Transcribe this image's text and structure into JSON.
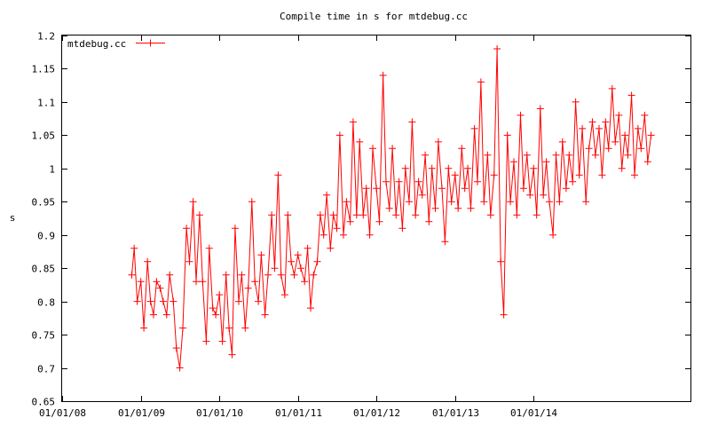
{
  "chart_data": {
    "type": "line",
    "title": "Compile time in s for mtdebug.cc",
    "xlabel": "",
    "ylabel": "s",
    "xlim": [
      "2008-01-01",
      "2015-12-31"
    ],
    "ylim": [
      0.65,
      1.2
    ],
    "yticks": [
      0.65,
      0.7,
      0.75,
      0.8,
      0.85,
      0.9,
      0.95,
      1,
      1.05,
      1.1,
      1.15,
      1.2
    ],
    "ytick_labels": [
      "0.65",
      "0.7",
      "0.75",
      "0.8",
      "0.85",
      "0.9",
      "0.95",
      "1",
      "1.05",
      "1.1",
      "1.15",
      "1.2"
    ],
    "xticks": [
      "2008-01-01",
      "2009-01-01",
      "2010-01-01",
      "2011-01-01",
      "2012-01-01",
      "2013-01-01",
      "2014-01-01"
    ],
    "xtick_labels": [
      "01/01/08",
      "01/01/09",
      "01/01/10",
      "01/01/11",
      "01/01/12",
      "01/01/13",
      "01/01/14"
    ],
    "grid": false,
    "legend_position": "top-left",
    "series": [
      {
        "name": "mtdebug.cc",
        "color": "#ff0000",
        "marker": "plus",
        "points": [
          [
            "2008-11-20",
            0.84
          ],
          [
            "2008-12-01",
            0.88
          ],
          [
            "2008-12-15",
            0.8
          ],
          [
            "2009-01-01",
            0.83
          ],
          [
            "2009-01-15",
            0.76
          ],
          [
            "2009-02-01",
            0.86
          ],
          [
            "2009-02-15",
            0.8
          ],
          [
            "2009-03-01",
            0.78
          ],
          [
            "2009-03-15",
            0.83
          ],
          [
            "2009-04-01",
            0.82
          ],
          [
            "2009-04-15",
            0.8
          ],
          [
            "2009-05-01",
            0.78
          ],
          [
            "2009-05-15",
            0.84
          ],
          [
            "2009-06-01",
            0.8
          ],
          [
            "2009-06-15",
            0.73
          ],
          [
            "2009-07-01",
            0.7
          ],
          [
            "2009-07-15",
            0.76
          ],
          [
            "2009-08-01",
            0.91
          ],
          [
            "2009-08-15",
            0.86
          ],
          [
            "2009-09-01",
            0.95
          ],
          [
            "2009-09-15",
            0.83
          ],
          [
            "2009-10-01",
            0.93
          ],
          [
            "2009-10-15",
            0.83
          ],
          [
            "2009-11-01",
            0.74
          ],
          [
            "2009-11-15",
            0.88
          ],
          [
            "2009-12-01",
            0.79
          ],
          [
            "2009-12-15",
            0.78
          ],
          [
            "2010-01-01",
            0.81
          ],
          [
            "2010-01-15",
            0.74
          ],
          [
            "2010-02-01",
            0.84
          ],
          [
            "2010-02-15",
            0.76
          ],
          [
            "2010-03-01",
            0.72
          ],
          [
            "2010-03-15",
            0.91
          ],
          [
            "2010-04-01",
            0.8
          ],
          [
            "2010-04-15",
            0.84
          ],
          [
            "2010-05-01",
            0.76
          ],
          [
            "2010-05-15",
            0.82
          ],
          [
            "2010-06-01",
            0.95
          ],
          [
            "2010-06-15",
            0.83
          ],
          [
            "2010-07-01",
            0.8
          ],
          [
            "2010-07-15",
            0.87
          ],
          [
            "2010-08-01",
            0.78
          ],
          [
            "2010-08-15",
            0.84
          ],
          [
            "2010-09-01",
            0.93
          ],
          [
            "2010-09-15",
            0.85
          ],
          [
            "2010-10-01",
            0.99
          ],
          [
            "2010-10-15",
            0.84
          ],
          [
            "2010-11-01",
            0.81
          ],
          [
            "2010-11-15",
            0.93
          ],
          [
            "2010-12-01",
            0.86
          ],
          [
            "2010-12-15",
            0.84
          ],
          [
            "2011-01-01",
            0.87
          ],
          [
            "2011-01-15",
            0.85
          ],
          [
            "2011-02-01",
            0.83
          ],
          [
            "2011-02-15",
            0.88
          ],
          [
            "2011-03-01",
            0.79
          ],
          [
            "2011-03-15",
            0.84
          ],
          [
            "2011-04-01",
            0.86
          ],
          [
            "2011-04-15",
            0.93
          ],
          [
            "2011-05-01",
            0.9
          ],
          [
            "2011-05-15",
            0.96
          ],
          [
            "2011-06-01",
            0.88
          ],
          [
            "2011-06-15",
            0.93
          ],
          [
            "2011-07-01",
            0.91
          ],
          [
            "2011-07-15",
            1.05
          ],
          [
            "2011-08-01",
            0.9
          ],
          [
            "2011-08-15",
            0.95
          ],
          [
            "2011-09-01",
            0.92
          ],
          [
            "2011-09-15",
            1.07
          ],
          [
            "2011-10-01",
            0.93
          ],
          [
            "2011-10-15",
            1.04
          ],
          [
            "2011-11-01",
            0.93
          ],
          [
            "2011-11-15",
            0.97
          ],
          [
            "2011-12-01",
            0.9
          ],
          [
            "2011-12-15",
            1.03
          ],
          [
            "2012-01-01",
            0.97
          ],
          [
            "2012-01-15",
            0.92
          ],
          [
            "2012-02-01",
            1.14
          ],
          [
            "2012-02-15",
            0.98
          ],
          [
            "2012-03-01",
            0.94
          ],
          [
            "2012-03-15",
            1.03
          ],
          [
            "2012-04-01",
            0.93
          ],
          [
            "2012-04-15",
            0.98
          ],
          [
            "2012-05-01",
            0.91
          ],
          [
            "2012-05-15",
            1.0
          ],
          [
            "2012-06-01",
            0.95
          ],
          [
            "2012-06-15",
            1.07
          ],
          [
            "2012-07-01",
            0.93
          ],
          [
            "2012-07-15",
            0.98
          ],
          [
            "2012-08-01",
            0.96
          ],
          [
            "2012-08-15",
            1.02
          ],
          [
            "2012-09-01",
            0.92
          ],
          [
            "2012-09-15",
            1.0
          ],
          [
            "2012-10-01",
            0.94
          ],
          [
            "2012-10-15",
            1.04
          ],
          [
            "2012-11-01",
            0.97
          ],
          [
            "2012-11-15",
            0.89
          ],
          [
            "2012-12-01",
            1.0
          ],
          [
            "2012-12-15",
            0.95
          ],
          [
            "2013-01-01",
            0.99
          ],
          [
            "2013-01-15",
            0.94
          ],
          [
            "2013-02-01",
            1.03
          ],
          [
            "2013-02-15",
            0.97
          ],
          [
            "2013-03-01",
            1.0
          ],
          [
            "2013-03-15",
            0.94
          ],
          [
            "2013-04-01",
            1.06
          ],
          [
            "2013-04-15",
            0.98
          ],
          [
            "2013-05-01",
            1.13
          ],
          [
            "2013-05-15",
            0.95
          ],
          [
            "2013-06-01",
            1.02
          ],
          [
            "2013-06-15",
            0.93
          ],
          [
            "2013-07-01",
            0.99
          ],
          [
            "2013-07-15",
            1.18
          ],
          [
            "2013-08-01",
            0.86
          ],
          [
            "2013-08-15",
            0.78
          ],
          [
            "2013-09-01",
            1.05
          ],
          [
            "2013-09-15",
            0.95
          ],
          [
            "2013-10-01",
            1.01
          ],
          [
            "2013-10-15",
            0.93
          ],
          [
            "2013-11-01",
            1.08
          ],
          [
            "2013-11-15",
            0.97
          ],
          [
            "2013-12-01",
            1.02
          ],
          [
            "2013-12-15",
            0.96
          ],
          [
            "2014-01-01",
            1.0
          ],
          [
            "2014-01-15",
            0.93
          ],
          [
            "2014-02-01",
            1.09
          ],
          [
            "2014-02-15",
            0.96
          ],
          [
            "2014-03-01",
            1.01
          ],
          [
            "2014-03-15",
            0.95
          ],
          [
            "2014-04-01",
            0.9
          ],
          [
            "2014-04-15",
            1.02
          ],
          [
            "2014-05-01",
            0.95
          ],
          [
            "2014-05-15",
            1.04
          ],
          [
            "2014-06-01",
            0.97
          ],
          [
            "2014-06-15",
            1.02
          ],
          [
            "2014-07-01",
            0.98
          ],
          [
            "2014-07-15",
            1.1
          ],
          [
            "2014-08-01",
            0.99
          ],
          [
            "2014-08-15",
            1.06
          ],
          [
            "2014-09-01",
            0.95
          ],
          [
            "2014-09-15",
            1.03
          ],
          [
            "2014-10-01",
            1.07
          ],
          [
            "2014-10-15",
            1.02
          ],
          [
            "2014-11-01",
            1.06
          ],
          [
            "2014-11-15",
            0.99
          ],
          [
            "2014-12-01",
            1.07
          ],
          [
            "2014-12-15",
            1.03
          ],
          [
            "2015-01-01",
            1.12
          ],
          [
            "2015-01-15",
            1.04
          ],
          [
            "2015-02-01",
            1.08
          ],
          [
            "2015-02-15",
            1.0
          ],
          [
            "2015-03-01",
            1.05
          ],
          [
            "2015-03-15",
            1.02
          ],
          [
            "2015-04-01",
            1.11
          ],
          [
            "2015-04-15",
            0.99
          ],
          [
            "2015-05-01",
            1.06
          ],
          [
            "2015-05-15",
            1.03
          ],
          [
            "2015-06-01",
            1.08
          ],
          [
            "2015-06-15",
            1.01
          ],
          [
            "2015-07-01",
            1.05
          ]
        ]
      }
    ]
  }
}
